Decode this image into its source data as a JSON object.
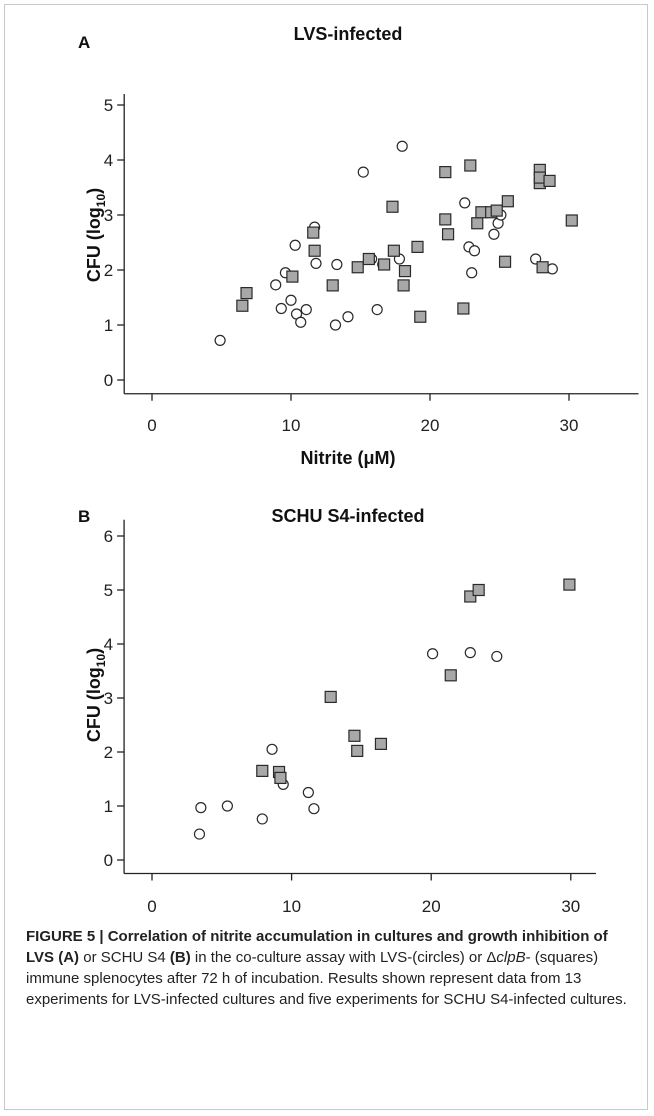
{
  "chart_data": [
    {
      "panel_label": "A",
      "title": "LVS-infected",
      "type": "scatter",
      "xlabel": "Nitrite (μM)",
      "ylabel_main": "CFU (log",
      "ylabel_sub": "10",
      "ylabel_close": ")",
      "xlim": [
        -2,
        35
      ],
      "ylim": [
        -0.25,
        5.2
      ],
      "xticks": [
        0,
        10,
        20,
        30
      ],
      "yticks": [
        0,
        1,
        2,
        3,
        4,
        5
      ],
      "series": [
        {
          "marker": "circle",
          "points": [
            [
              4.9,
              0.72
            ],
            [
              8.9,
              1.73
            ],
            [
              9.3,
              1.3
            ],
            [
              9.6,
              1.95
            ],
            [
              10.0,
              1.45
            ],
            [
              10.3,
              2.45
            ],
            [
              10.4,
              1.2
            ],
            [
              10.7,
              1.05
            ],
            [
              11.1,
              1.28
            ],
            [
              11.7,
              2.78
            ],
            [
              11.8,
              2.12
            ],
            [
              13.2,
              1.0
            ],
            [
              13.3,
              2.1
            ],
            [
              14.1,
              1.15
            ],
            [
              15.2,
              3.78
            ],
            [
              15.8,
              2.2
            ],
            [
              16.2,
              1.28
            ],
            [
              16.6,
              2.1
            ],
            [
              17.8,
              2.2
            ],
            [
              18.0,
              4.25
            ],
            [
              22.5,
              3.22
            ],
            [
              22.8,
              2.42
            ],
            [
              23.0,
              1.95
            ],
            [
              23.2,
              2.35
            ],
            [
              24.6,
              2.65
            ],
            [
              24.9,
              2.85
            ],
            [
              25.1,
              3.0
            ],
            [
              27.6,
              2.2
            ],
            [
              28.8,
              2.02
            ]
          ]
        },
        {
          "marker": "square",
          "points": [
            [
              6.5,
              1.35
            ],
            [
              6.8,
              1.58
            ],
            [
              10.1,
              1.88
            ],
            [
              11.6,
              2.68
            ],
            [
              11.7,
              2.35
            ],
            [
              13.0,
              1.72
            ],
            [
              14.8,
              2.05
            ],
            [
              15.6,
              2.2
            ],
            [
              16.7,
              2.1
            ],
            [
              17.3,
              3.15
            ],
            [
              17.4,
              2.35
            ],
            [
              18.1,
              1.72
            ],
            [
              18.2,
              1.98
            ],
            [
              19.1,
              2.42
            ],
            [
              19.3,
              1.15
            ],
            [
              21.1,
              3.78
            ],
            [
              21.1,
              2.92
            ],
            [
              21.3,
              2.65
            ],
            [
              22.4,
              1.3
            ],
            [
              22.9,
              3.9
            ],
            [
              23.4,
              2.85
            ],
            [
              23.7,
              3.05
            ],
            [
              24.4,
              3.05
            ],
            [
              24.8,
              3.08
            ],
            [
              25.4,
              2.15
            ],
            [
              25.6,
              3.25
            ],
            [
              27.9,
              3.82
            ],
            [
              27.9,
              3.58
            ],
            [
              27.9,
              3.68
            ],
            [
              28.1,
              2.05
            ],
            [
              28.6,
              3.62
            ],
            [
              30.2,
              2.9
            ]
          ]
        }
      ]
    },
    {
      "panel_label": "B",
      "title": "SCHU S4-infected",
      "type": "scatter",
      "xlabel": "Nitrite (μM)",
      "ylabel_main": "CFU (log",
      "ylabel_sub": "10",
      "ylabel_close": ")",
      "xlim": [
        -2,
        31.8
      ],
      "ylim": [
        -0.25,
        6.3
      ],
      "xticks": [
        0,
        10,
        20,
        30
      ],
      "yticks": [
        0,
        1,
        2,
        3,
        4,
        5,
        6
      ],
      "series": [
        {
          "marker": "circle",
          "points": [
            [
              3.4,
              0.48
            ],
            [
              3.5,
              0.97
            ],
            [
              5.4,
              1.0
            ],
            [
              7.9,
              0.76
            ],
            [
              8.6,
              2.05
            ],
            [
              9.4,
              1.4
            ],
            [
              11.2,
              1.25
            ],
            [
              11.6,
              0.95
            ],
            [
              20.1,
              3.82
            ],
            [
              22.8,
              3.84
            ],
            [
              24.7,
              3.77
            ]
          ]
        },
        {
          "marker": "square",
          "points": [
            [
              7.9,
              1.65
            ],
            [
              9.1,
              1.63
            ],
            [
              9.2,
              1.52
            ],
            [
              12.8,
              3.02
            ],
            [
              14.5,
              2.3
            ],
            [
              14.7,
              2.02
            ],
            [
              16.4,
              2.15
            ],
            [
              21.4,
              3.42
            ],
            [
              22.8,
              4.88
            ],
            [
              23.4,
              5.0
            ],
            [
              29.9,
              5.1
            ]
          ]
        }
      ]
    }
  ],
  "caption": {
    "lead": "FIGURE 5 | Correlation of nitrite accumulation in cultures and growth inhibition of LVS ",
    "lead_a": "(A)",
    "mid1": " or SCHU S4 ",
    "lead_b": "(B)",
    "mid2": " in the co-culture assay with LVS-(circles) or Δ",
    "gene": "clpB",
    "rest": "- (squares) immune splenocytes after 72 h of incubation. Results shown represent data from 13 experiments for LVS-infected cultures and five experiments for SCHU S4-infected cultures."
  },
  "colors": {
    "square_fill": "#a8a8a8",
    "square_stroke": "#2a2a2a",
    "circle_fill": "#ffffff",
    "circle_stroke": "#2a2a2a",
    "axis": "#222222",
    "frame": "#c9c9c9"
  }
}
